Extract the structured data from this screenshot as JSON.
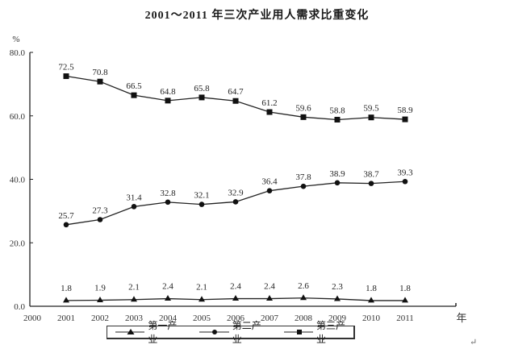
{
  "chart_data": {
    "type": "line",
    "title": "2001～2011 年三次产业用人需求比重变化",
    "ylabel": "%",
    "xlabel": "年",
    "ylim": [
      0,
      80
    ],
    "yticks": [
      "0.0",
      "20.0",
      "40.0",
      "60.0",
      "80.0"
    ],
    "x_tick_labels": [
      "2000",
      "2001",
      "2002",
      "2003",
      "2004",
      "2005",
      "2006",
      "2007",
      "2008",
      "2009",
      "2010",
      "2011"
    ],
    "categories": [
      "2001",
      "2002",
      "2003",
      "2004",
      "2005",
      "2006",
      "2007",
      "2008",
      "2009",
      "2010",
      "2011"
    ],
    "grid": false,
    "legend_position": "bottom",
    "series": [
      {
        "name": "第一产业",
        "marker": "triangle",
        "values": [
          1.8,
          1.9,
          2.1,
          2.4,
          2.1,
          2.4,
          2.4,
          2.6,
          2.3,
          1.8,
          1.8
        ]
      },
      {
        "name": "第二产业",
        "marker": "circle",
        "values": [
          25.7,
          27.3,
          31.4,
          32.8,
          32.1,
          32.9,
          36.4,
          37.8,
          38.9,
          38.7,
          39.3
        ]
      },
      {
        "name": "第三产业",
        "marker": "square",
        "values": [
          72.5,
          70.8,
          66.5,
          64.8,
          65.8,
          64.7,
          61.2,
          59.6,
          58.8,
          59.5,
          58.9
        ]
      }
    ]
  },
  "legend": {
    "items": [
      "第一产业",
      "第二产业",
      "第三产业"
    ]
  },
  "return_mark": "↵"
}
